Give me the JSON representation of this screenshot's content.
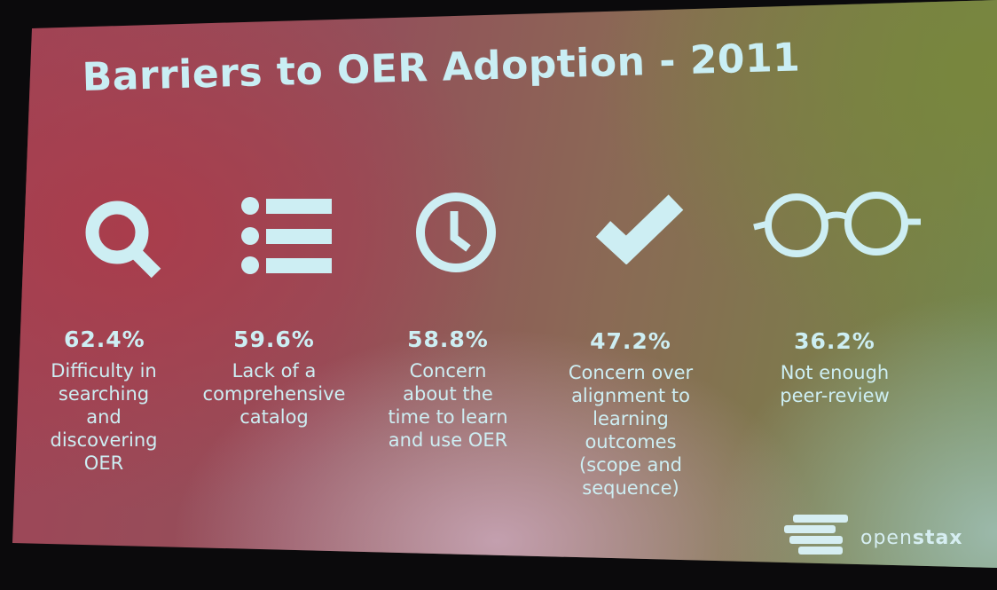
{
  "slide": {
    "title": "Barriers to OER Adoption - 2011",
    "accent_color": "#cdeef3",
    "items": [
      {
        "icon": "search-icon",
        "percent": "62.4%",
        "lines": [
          "Difficulty in",
          "searching",
          "and",
          "discovering",
          "OER"
        ]
      },
      {
        "icon": "list-icon",
        "percent": "59.6%",
        "lines": [
          "Lack of a",
          "comprehensive",
          "catalog"
        ]
      },
      {
        "icon": "clock-icon",
        "percent": "58.8%",
        "lines": [
          "Concern",
          "about the",
          "time to learn",
          "and use OER"
        ]
      },
      {
        "icon": "checkmark-icon",
        "percent": "47.2%",
        "lines": [
          "Concern over",
          "alignment to",
          "learning",
          "outcomes",
          "(scope and",
          "sequence)"
        ]
      },
      {
        "icon": "glasses-icon",
        "percent": "36.2%",
        "lines": [
          "Not enough",
          "peer-review"
        ]
      }
    ]
  },
  "logo": {
    "text_prefix": "open",
    "text_suffix": "stax",
    "icon": "openstax-logo-icon"
  }
}
